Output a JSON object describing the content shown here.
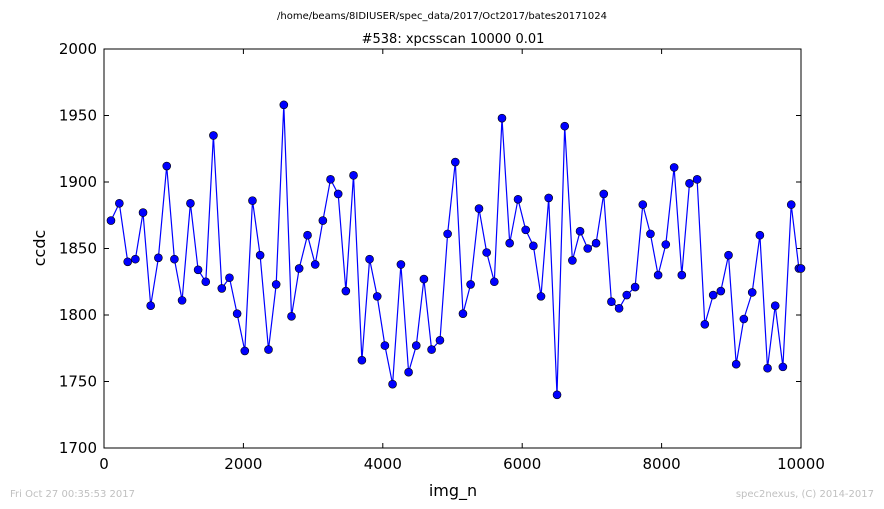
{
  "chart_data": {
    "type": "line",
    "suptitle": "/home/beams/8IDIUSER/spec_data/2017/Oct2017/bates20171024",
    "title": "#538: xpcsscan 10000 0.01",
    "xlabel": "img_n",
    "ylabel": "ccdc",
    "xlim": [
      0,
      10000
    ],
    "ylim": [
      1700,
      2000
    ],
    "xticks": [
      0,
      2000,
      4000,
      6000,
      8000,
      10000
    ],
    "yticks": [
      1700,
      1750,
      1800,
      1850,
      1900,
      1950,
      2000
    ],
    "grid": false,
    "legend": false,
    "series": [
      {
        "color": "#0000ff",
        "marker": "circle",
        "x": [
          100,
          220,
          340,
          450,
          560,
          670,
          780,
          900,
          1010,
          1120,
          1240,
          1350,
          1460,
          1570,
          1690,
          1800,
          1910,
          2020,
          2130,
          2240,
          2360,
          2470,
          2580,
          2690,
          2800,
          2920,
          3030,
          3140,
          3250,
          3360,
          3470,
          3580,
          3700,
          3810,
          3920,
          4030,
          4140,
          4260,
          4370,
          4480,
          4590,
          4700,
          4820,
          4930,
          5040,
          5150,
          5260,
          5380,
          5490,
          5600,
          5710,
          5820,
          5940,
          6050,
          6160,
          6270,
          6380,
          6500,
          6610,
          6720,
          6830,
          6940,
          7060,
          7170,
          7280,
          7390,
          7500,
          7620,
          7730,
          7840,
          7950,
          8060,
          8180,
          8290,
          8400,
          8510,
          8620,
          8740,
          8850,
          8960,
          9070,
          9180,
          9300,
          9410,
          9520,
          9630,
          9740,
          9860,
          9970,
          10000
        ],
        "y": [
          1871,
          1884,
          1840,
          1842,
          1877,
          1807,
          1843,
          1912,
          1842,
          1811,
          1884,
          1834,
          1825,
          1935,
          1820,
          1828,
          1801,
          1773,
          1886,
          1845,
          1774,
          1823,
          1958,
          1799,
          1835,
          1860,
          1838,
          1871,
          1902,
          1891,
          1818,
          1905,
          1766,
          1842,
          1814,
          1777,
          1748,
          1838,
          1757,
          1777,
          1827,
          1774,
          1781,
          1861,
          1915,
          1801,
          1823,
          1880,
          1847,
          1825,
          1948,
          1854,
          1887,
          1864,
          1852,
          1814,
          1888,
          1740,
          1942,
          1841,
          1863,
          1850,
          1854,
          1891,
          1810,
          1805,
          1815,
          1821,
          1883,
          1861,
          1830,
          1853,
          1911,
          1830,
          1899,
          1902,
          1793,
          1815,
          1818,
          1845,
          1763,
          1797,
          1817,
          1860,
          1760,
          1807,
          1761,
          1883,
          1835,
          1835
        ]
      }
    ]
  },
  "footer": {
    "timestamp": "Fri Oct 27 00:35:53 2017",
    "credit": "spec2nexus, (C) 2014-2017"
  }
}
